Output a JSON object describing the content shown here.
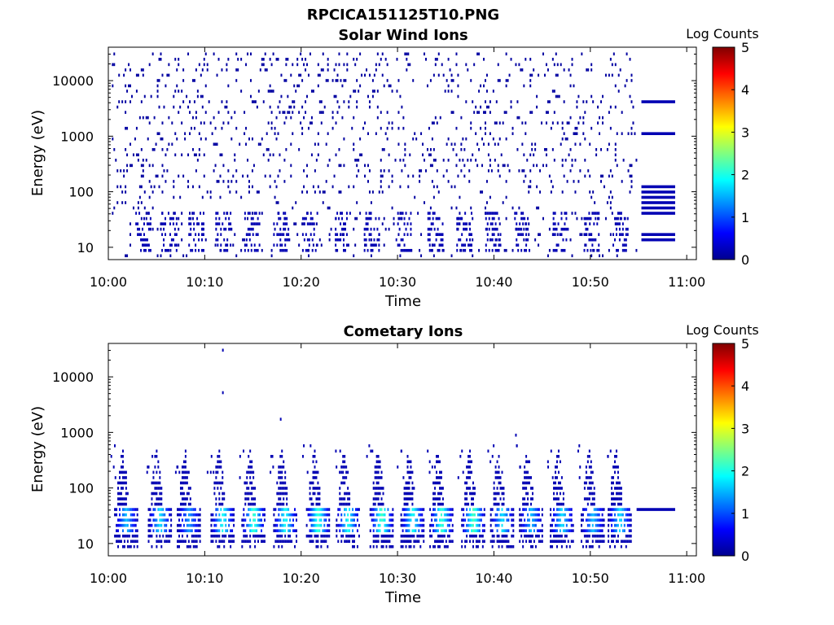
{
  "figure": {
    "title": "RPCICA151125T10.PNG"
  },
  "colorbar": {
    "label": "Log Counts",
    "min": 0,
    "max": 5,
    "ticks": [
      "0",
      "1",
      "2",
      "3",
      "4",
      "5"
    ],
    "colormap": "jet",
    "stops": [
      "#00008f",
      "#0000ff",
      "#0080ff",
      "#00ffff",
      "#80ff80",
      "#ffff00",
      "#ff8000",
      "#ff0000",
      "#800000"
    ]
  },
  "chart_data": [
    {
      "type": "heatmap",
      "title": "Solar Wind Ions",
      "xlabel": "Time",
      "ylabel": "Energy (eV)",
      "x_tick_labels": [
        "10:00",
        "10:10",
        "10:20",
        "10:30",
        "10:40",
        "10:50",
        "11:00"
      ],
      "x_ticks_min": [
        0,
        10,
        20,
        30,
        40,
        50,
        60
      ],
      "xlim_min": [
        0,
        61
      ],
      "y_scale": "log",
      "y_tick_labels": [
        "10",
        "100",
        "1000",
        "10000"
      ],
      "y_ticks": [
        10,
        100,
        1000,
        10000
      ],
      "ylim": [
        6,
        40000
      ],
      "z_range": [
        0,
        5
      ],
      "data_end_min": 54.8,
      "bursts_min": [
        3.5,
        6.2,
        9.0,
        11.8,
        14.8,
        17.8,
        20.8,
        24.2,
        27.2,
        30.5,
        33.8,
        36.8,
        39.8,
        42.8,
        46.8,
        50.0,
        53.0
      ],
      "noise_energy_range_eV": [
        100,
        30000
      ],
      "noise_log_counts": 0.1,
      "burst_energy_range_eV": [
        12,
        40
      ],
      "burst_log_counts": 0.2,
      "bands": [
        {
          "t_start_min": 55.3,
          "t_end_min": 58.8,
          "energy_eV": 4100,
          "log_counts": 0.2
        },
        {
          "t_start_min": 55.3,
          "t_end_min": 58.8,
          "energy_eV": 1050,
          "log_counts": 0.2
        },
        {
          "t_start_min": 55.3,
          "t_end_min": 58.8,
          "energy_eV": 122,
          "log_counts": 0.2
        },
        {
          "t_start_min": 55.3,
          "t_end_min": 58.8,
          "energy_eV": 98,
          "log_counts": 0.2
        },
        {
          "t_start_min": 55.3,
          "t_end_min": 58.8,
          "energy_eV": 79,
          "log_counts": 0.2
        },
        {
          "t_start_min": 55.3,
          "t_end_min": 58.8,
          "energy_eV": 64,
          "log_counts": 0.2
        },
        {
          "t_start_min": 55.3,
          "t_end_min": 58.8,
          "energy_eV": 51,
          "log_counts": 0.2
        },
        {
          "t_start_min": 55.3,
          "t_end_min": 58.8,
          "energy_eV": 43,
          "log_counts": 0.2
        },
        {
          "t_start_min": 55.3,
          "t_end_min": 58.8,
          "energy_eV": 16,
          "log_counts": 0.2
        },
        {
          "t_start_min": 55.3,
          "t_end_min": 58.8,
          "energy_eV": 13,
          "log_counts": 0.2
        }
      ]
    },
    {
      "type": "heatmap",
      "title": "Cometary Ions",
      "xlabel": "Time",
      "ylabel": "Energy (eV)",
      "x_tick_labels": [
        "10:00",
        "10:10",
        "10:20",
        "10:30",
        "10:40",
        "10:50",
        "11:00"
      ],
      "x_ticks_min": [
        0,
        10,
        20,
        30,
        40,
        50,
        60
      ],
      "xlim_min": [
        0,
        61
      ],
      "y_scale": "log",
      "y_tick_labels": [
        "10",
        "100",
        "1000",
        "10000"
      ],
      "y_ticks": [
        10,
        100,
        1000,
        10000
      ],
      "ylim": [
        6,
        40000
      ],
      "z_range": [
        0,
        5
      ],
      "data_end_min": 54.8,
      "bursts": [
        {
          "t_min": 1.8,
          "peak_log": 1.6
        },
        {
          "t_min": 5.3,
          "peak_log": 1.8
        },
        {
          "t_min": 8.3,
          "peak_log": 1.4
        },
        {
          "t_min": 11.8,
          "peak_log": 2.0
        },
        {
          "t_min": 15.0,
          "peak_log": 2.2
        },
        {
          "t_min": 18.3,
          "peak_log": 2.0
        },
        {
          "t_min": 21.7,
          "peak_log": 2.2
        },
        {
          "t_min": 24.8,
          "peak_log": 2.0
        },
        {
          "t_min": 28.3,
          "peak_log": 2.3
        },
        {
          "t_min": 31.5,
          "peak_log": 2.0
        },
        {
          "t_min": 34.5,
          "peak_log": 2.2
        },
        {
          "t_min": 37.8,
          "peak_log": 2.3
        },
        {
          "t_min": 40.8,
          "peak_log": 1.8
        },
        {
          "t_min": 43.8,
          "peak_log": 1.6
        },
        {
          "t_min": 47.0,
          "peak_log": 1.8
        },
        {
          "t_min": 50.2,
          "peak_log": 1.6
        },
        {
          "t_min": 53.0,
          "peak_log": 1.8
        }
      ],
      "bands": [
        {
          "t_start_min": 54.8,
          "t_end_min": 58.8,
          "energy_eV": 41,
          "log_counts": 0.2
        }
      ],
      "isolated_points": [
        {
          "t_min": 11.8,
          "energy_eV": 30000
        },
        {
          "t_min": 11.8,
          "energy_eV": 5300
        },
        {
          "t_min": 17.8,
          "energy_eV": 1500
        },
        {
          "t_min": 42.2,
          "energy_eV": 830
        }
      ]
    }
  ]
}
